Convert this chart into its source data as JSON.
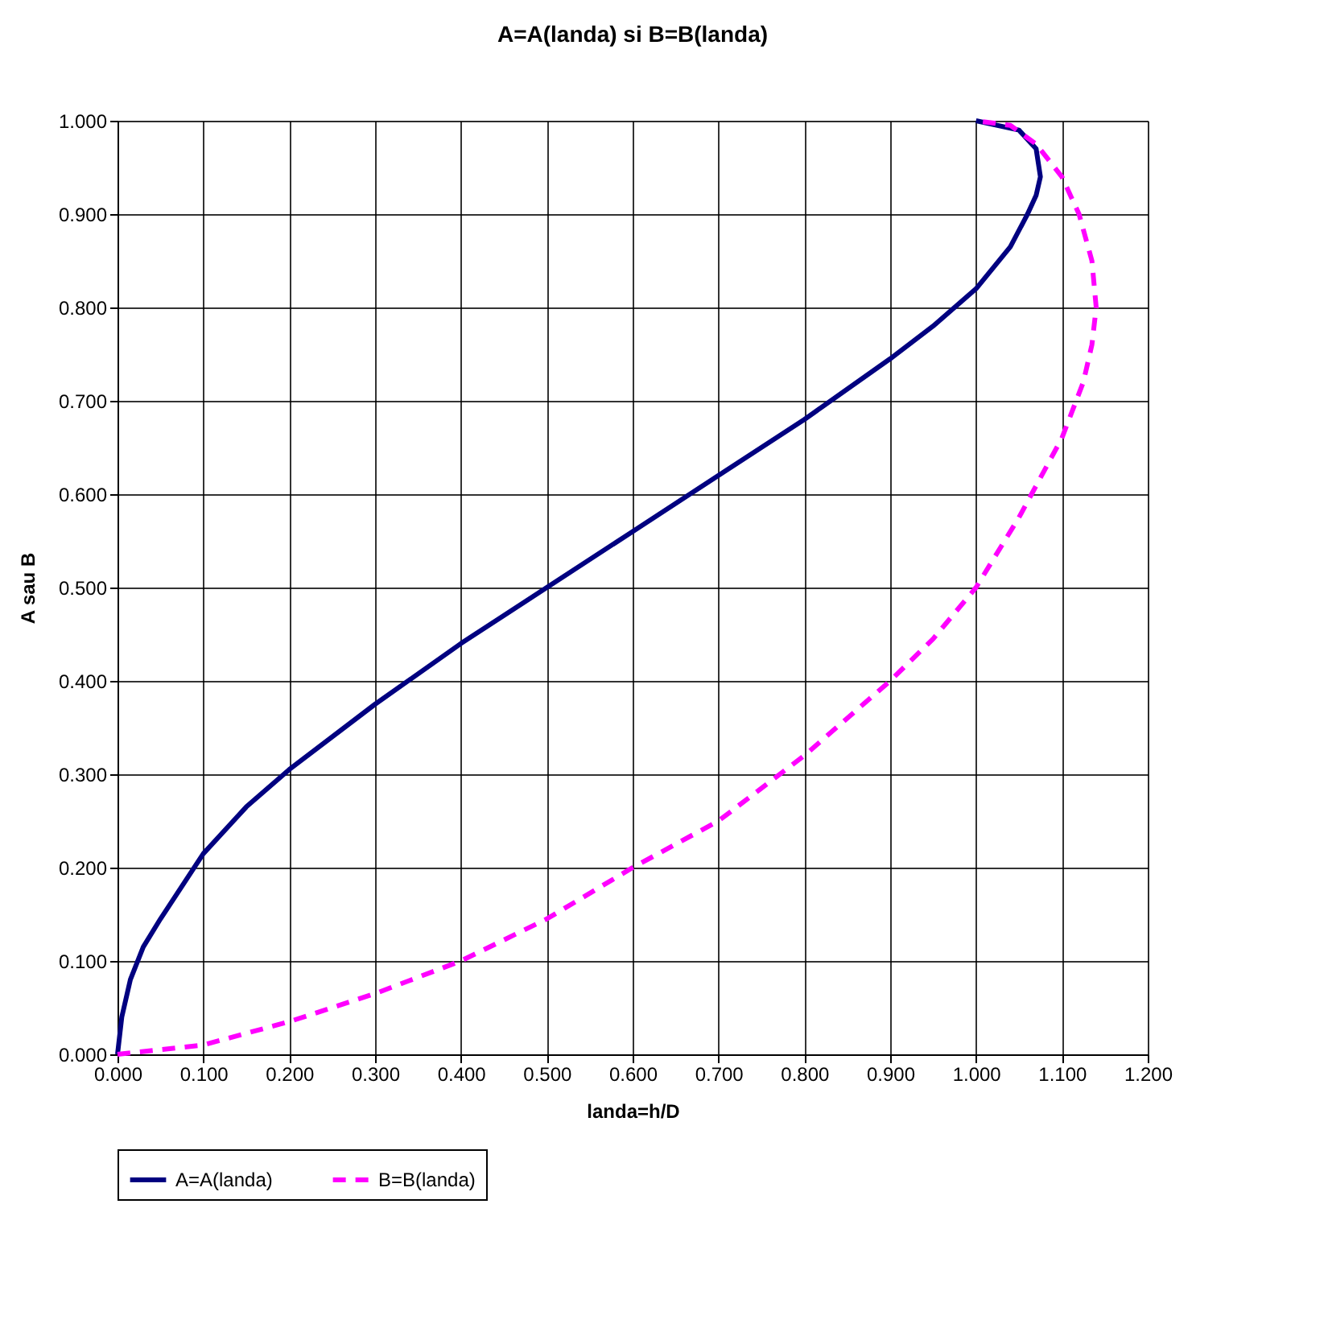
{
  "chart_data": {
    "type": "line",
    "title": "A=A(landa) si B=B(landa)",
    "xlabel": "landa=h/D",
    "ylabel": "A sau B",
    "xlim": [
      0,
      1.2
    ],
    "ylim": [
      0,
      1.0
    ],
    "xticks": [
      {
        "value": 0,
        "label": "0.000"
      },
      {
        "value": 0.1,
        "label": "0.100"
      },
      {
        "value": 0.2,
        "label": "0.200"
      },
      {
        "value": 0.3,
        "label": "0.300"
      },
      {
        "value": 0.4,
        "label": "0.400"
      },
      {
        "value": 0.5,
        "label": "0.500"
      },
      {
        "value": 0.6,
        "label": "0.600"
      },
      {
        "value": 0.7,
        "label": "0.700"
      },
      {
        "value": 0.8,
        "label": "0.800"
      },
      {
        "value": 0.9,
        "label": "0.900"
      },
      {
        "value": 1.0,
        "label": "1.000"
      },
      {
        "value": 1.1,
        "label": "1.100"
      },
      {
        "value": 1.2,
        "label": "1.200"
      }
    ],
    "yticks": [
      {
        "value": 0,
        "label": "0.000"
      },
      {
        "value": 0.1,
        "label": "0.100"
      },
      {
        "value": 0.2,
        "label": "0.200"
      },
      {
        "value": 0.3,
        "label": "0.300"
      },
      {
        "value": 0.4,
        "label": "0.400"
      },
      {
        "value": 0.5,
        "label": "0.500"
      },
      {
        "value": 0.6,
        "label": "0.600"
      },
      {
        "value": 0.7,
        "label": "0.700"
      },
      {
        "value": 0.8,
        "label": "0.800"
      },
      {
        "value": 0.9,
        "label": "0.900"
      },
      {
        "value": 1.0,
        "label": "1.000"
      }
    ],
    "grid": true,
    "legend": "bottom",
    "marker": "none",
    "series": [
      {
        "name": "A=A(landa)",
        "color": "#000080",
        "line_style": "solid",
        "x": [
          0,
          0.005,
          0.015,
          0.03,
          0.05,
          0.1,
          0.15,
          0.2,
          0.3,
          0.4,
          0.5,
          0.6,
          0.7,
          0.8,
          0.9,
          0.95,
          1.0,
          1.04,
          1.06,
          1.07,
          1.075,
          1.07,
          1.05,
          1.0
        ],
        "values": [
          0,
          0.04,
          0.08,
          0.115,
          0.145,
          0.215,
          0.265,
          0.305,
          0.375,
          0.44,
          0.5,
          0.56,
          0.62,
          0.68,
          0.745,
          0.78,
          0.82,
          0.865,
          0.9,
          0.92,
          0.94,
          0.97,
          0.99,
          1.0
        ]
      },
      {
        "name": "B=B(landa)",
        "color": "#ff00ff",
        "line_style": "dashed",
        "x": [
          0,
          0.1,
          0.2,
          0.3,
          0.4,
          0.5,
          0.6,
          0.7,
          0.8,
          0.9,
          0.95,
          1.0,
          1.05,
          1.1,
          1.125,
          1.135,
          1.14,
          1.135,
          1.12,
          1.1,
          1.07,
          1.04,
          1.0
        ],
        "values": [
          0,
          0.01,
          0.035,
          0.065,
          0.1,
          0.145,
          0.2,
          0.25,
          0.32,
          0.4,
          0.445,
          0.5,
          0.575,
          0.66,
          0.72,
          0.76,
          0.8,
          0.85,
          0.9,
          0.94,
          0.975,
          0.995,
          1.0
        ]
      }
    ]
  }
}
